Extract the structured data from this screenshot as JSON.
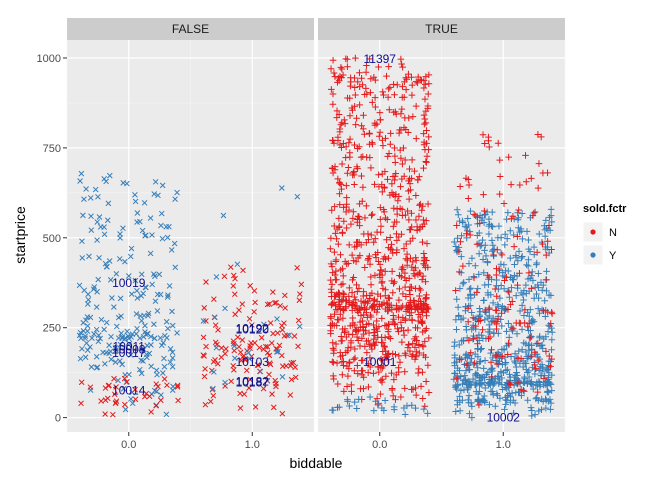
{
  "chart_data": {
    "type": "scatter",
    "facet_variable": "",
    "facets": [
      {
        "label": "FALSE",
        "annotations": [
          {
            "x": 0.0,
            "y": 375,
            "text": "10019"
          },
          {
            "x": 0.0,
            "y": 198,
            "text": "10011"
          },
          {
            "x": 0.0,
            "y": 190,
            "text": "10008"
          },
          {
            "x": 0.0,
            "y": 180,
            "text": "10017"
          },
          {
            "x": 0.0,
            "y": 75,
            "text": "10014"
          },
          {
            "x": 1.0,
            "y": 248,
            "text": "10192"
          },
          {
            "x": 1.0,
            "y": 245,
            "text": "10120"
          },
          {
            "x": 1.0,
            "y": 155,
            "text": "10103"
          },
          {
            "x": 1.0,
            "y": 100,
            "text": "10182"
          },
          {
            "x": 1.0,
            "y": 97,
            "text": "10187"
          }
        ],
        "series": [
          {
            "name": "N",
            "x_range": [
              0.6,
              1.4
            ],
            "count": 130,
            "y_dist": [
              0,
              420
            ],
            "mean": 190
          },
          {
            "name": "Y",
            "x_range": [
              -0.4,
              0.4
            ],
            "count": 230,
            "y_dist": [
              0,
              680
            ],
            "mean": 220
          },
          {
            "name": "N",
            "x_range": [
              -0.4,
              0.4
            ],
            "count": 35,
            "y_dist": [
              0,
              120
            ],
            "mean": 40
          },
          {
            "name": "Y",
            "x_range": [
              0.6,
              1.4
            ],
            "count": 25,
            "y_dist": [
              0,
              650
            ],
            "mean": 180
          }
        ]
      },
      {
        "label": "TRUE",
        "annotations": [
          {
            "x": 0.0,
            "y": 997,
            "text": "11397"
          },
          {
            "x": 0.0,
            "y": 155,
            "text": "10001"
          },
          {
            "x": 1.0,
            "y": 0,
            "text": "10002"
          }
        ],
        "series": [
          {
            "name": "N",
            "x_range": [
              -0.4,
              0.4
            ],
            "count": 900,
            "y_dist": [
              0,
              1000
            ],
            "mean": 300
          },
          {
            "name": "Y",
            "x_range": [
              0.6,
              1.4
            ],
            "count": 650,
            "y_dist": [
              0,
              580
            ],
            "mean": 90
          },
          {
            "name": "N",
            "x_range": [
              0.6,
              1.4
            ],
            "count": 150,
            "y_dist": [
              0,
              800
            ],
            "mean": 260
          },
          {
            "name": "Y",
            "x_range": [
              -0.4,
              0.4
            ],
            "count": 25,
            "y_dist": [
              0,
              60
            ],
            "mean": 20
          }
        ]
      }
    ],
    "xlabel": "biddable",
    "ylabel": "startprice",
    "xlim": [
      -0.5,
      1.5
    ],
    "ylim": [
      -40,
      1050
    ],
    "x_ticks": [
      {
        "value": 0.0,
        "label": "0.0"
      },
      {
        "value": 1.0,
        "label": "1.0"
      }
    ],
    "y_ticks": [
      {
        "value": 0,
        "label": "0"
      },
      {
        "value": 250,
        "label": "250"
      },
      {
        "value": 500,
        "label": "500"
      },
      {
        "value": 750,
        "label": "750"
      },
      {
        "value": 1000,
        "label": "1000"
      }
    ],
    "legend": {
      "title": "sold.fctr",
      "position": "right",
      "items": [
        {
          "name": "N",
          "color": "#e41a1c"
        },
        {
          "name": "Y",
          "color": "#377eb8"
        }
      ]
    },
    "markers": {
      "FALSE": "cross-x",
      "TRUE": "plus"
    },
    "grid": true,
    "panel_background": "#ebebeb",
    "strip_background": "#cccccc"
  }
}
